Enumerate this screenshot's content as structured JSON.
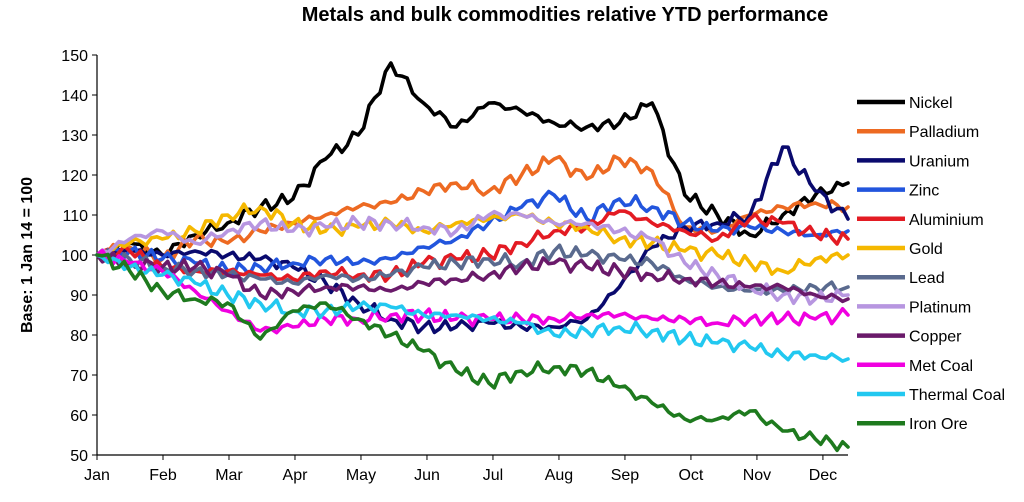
{
  "chart_data": {
    "type": "line",
    "title": "Metals and bulk commodities relative YTD performance",
    "xlabel": "",
    "ylabel": "Base:  1 Jan 14 = 100",
    "ylim": [
      50,
      150
    ],
    "yticks": [
      50,
      60,
      70,
      80,
      90,
      100,
      110,
      120,
      130,
      140,
      150
    ],
    "grid": false,
    "legend_position": "right",
    "x_ticks": [
      "Jan",
      "Feb",
      "Mar",
      "Apr",
      "May",
      "Jun",
      "Jul",
      "Aug",
      "Sep",
      "Oct",
      "Nov",
      "Dec"
    ],
    "x": [
      "Jan 1",
      "Jan 15",
      "Feb 1",
      "Feb 15",
      "Mar 1",
      "Mar 15",
      "Apr 1",
      "Apr 15",
      "May 1",
      "May 15",
      "Jun 1",
      "Jun 15",
      "Jul 1",
      "Jul 15",
      "Aug 1",
      "Aug 15",
      "Sep 1",
      "Sep 15",
      "Oct 1",
      "Oct 15",
      "Nov 1",
      "Nov 15",
      "Dec 1",
      "Dec 15"
    ],
    "series": [
      {
        "name": "Nickel",
        "color": "#000000",
        "values": [
          100,
          103,
          100,
          105,
          108,
          112,
          114,
          124,
          130,
          148,
          138,
          132,
          138,
          136,
          133,
          132,
          133,
          138,
          115,
          110,
          105,
          110,
          115,
          118
        ]
      },
      {
        "name": "Palladium",
        "color": "#ED6A22",
        "values": [
          100,
          102,
          99,
          104,
          103,
          106,
          108,
          110,
          112,
          113,
          116,
          118,
          116,
          120,
          124,
          119,
          124,
          121,
          107,
          106,
          110,
          112,
          113,
          112
        ]
      },
      {
        "name": "Uranium",
        "color": "#0A0A6E",
        "values": [
          100,
          101,
          100,
          101,
          100,
          99,
          97,
          93,
          88,
          84,
          82,
          82,
          83,
          82,
          82,
          84,
          92,
          102,
          107,
          108,
          110,
          127,
          116,
          109
        ]
      },
      {
        "name": "Zinc",
        "color": "#2255DD",
        "values": [
          100,
          101,
          99,
          98,
          96,
          97,
          98,
          99,
          98,
          99,
          102,
          104,
          108,
          112,
          115,
          109,
          114,
          112,
          108,
          106,
          107,
          106,
          105,
          106
        ]
      },
      {
        "name": "Aluminium",
        "color": "#E31B23",
        "values": [
          100,
          101,
          97,
          96,
          96,
          95,
          94,
          96,
          95,
          95,
          98,
          99,
          100,
          103,
          106,
          107,
          111,
          108,
          106,
          104,
          109,
          108,
          105,
          104
        ]
      },
      {
        "name": "Gold",
        "color": "#F5B800",
        "values": [
          100,
          103,
          104,
          106,
          110,
          112,
          108,
          106,
          107,
          108,
          106,
          108,
          109,
          110,
          108,
          107,
          104,
          103,
          101,
          100,
          98,
          96,
          99,
          100
        ]
      },
      {
        "name": "Lead",
        "color": "#5A6A8E",
        "values": [
          100,
          99,
          97,
          96,
          95,
          94,
          93,
          95,
          94,
          95,
          97,
          98,
          99,
          98,
          101,
          100,
          99,
          98,
          94,
          92,
          91,
          91,
          92,
          92
        ]
      },
      {
        "name": "Platinum",
        "color": "#B796E0",
        "values": [
          100,
          104,
          106,
          103,
          106,
          108,
          106,
          107,
          108,
          108,
          107,
          106,
          110,
          110,
          108,
          108,
          106,
          104,
          98,
          95,
          92,
          90,
          89,
          90
        ]
      },
      {
        "name": "Copper",
        "color": "#6A1A6A",
        "values": [
          100,
          98,
          97,
          97,
          95,
          90,
          91,
          92,
          92,
          91,
          93,
          94,
          95,
          97,
          98,
          97,
          96,
          95,
          94,
          93,
          92,
          92,
          90,
          89
        ]
      },
      {
        "name": "Met Coal",
        "color": "#F000E0",
        "values": [
          100,
          98,
          96,
          91,
          86,
          81,
          82,
          84,
          84,
          85,
          85,
          84,
          84,
          84,
          84,
          85,
          85,
          84,
          84,
          83,
          84,
          84,
          84,
          85
        ]
      },
      {
        "name": "Thermal Coal",
        "color": "#22C8F0",
        "values": [
          100,
          97,
          95,
          93,
          90,
          88,
          86,
          86,
          87,
          87,
          85,
          85,
          84,
          83,
          80,
          81,
          82,
          81,
          79,
          78,
          77,
          75,
          75,
          74
        ]
      },
      {
        "name": "Iron Ore",
        "color": "#1E7A1E",
        "values": [
          100,
          96,
          91,
          89,
          88,
          79,
          86,
          88,
          84,
          80,
          76,
          71,
          68,
          71,
          72,
          71,
          67,
          63,
          59,
          59,
          61,
          56,
          54,
          52
        ]
      }
    ]
  }
}
